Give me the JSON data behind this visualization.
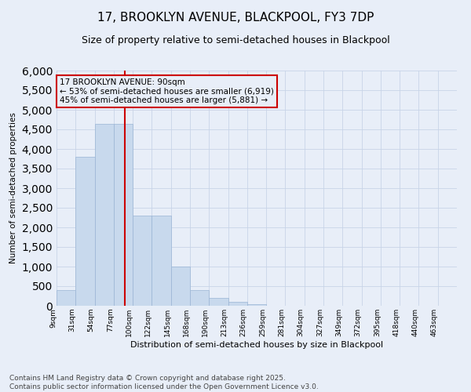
{
  "title_line1": "17, BROOKLYN AVENUE, BLACKPOOL, FY3 7DP",
  "title_line2": "Size of property relative to semi-detached houses in Blackpool",
  "xlabel": "Distribution of semi-detached houses by size in Blackpool",
  "ylabel": "Number of semi-detached properties",
  "bin_labels": [
    "9sqm",
    "31sqm",
    "54sqm",
    "77sqm",
    "100sqm",
    "122sqm",
    "145sqm",
    "168sqm",
    "190sqm",
    "213sqm",
    "236sqm",
    "259sqm",
    "281sqm",
    "304sqm",
    "327sqm",
    "349sqm",
    "372sqm",
    "395sqm",
    "418sqm",
    "440sqm",
    "463sqm"
  ],
  "bar_heights": [
    400,
    3800,
    4650,
    4650,
    2300,
    2300,
    1000,
    400,
    200,
    100,
    50,
    0,
    0,
    0,
    0,
    0,
    0,
    0,
    0,
    0,
    0
  ],
  "bar_color": "#c8d9ed",
  "bar_edge_color": "#9ab5d5",
  "grid_color": "#c8d4e8",
  "background_color": "#e8eef8",
  "vline_x": 3.6,
  "vline_color": "#cc0000",
  "annotation_text": "17 BROOKLYN AVENUE: 90sqm\n← 53% of semi-detached houses are smaller (6,919)\n45% of semi-detached houses are larger (5,881) →",
  "annotation_box_color": "#cc0000",
  "ylim": [
    0,
    6000
  ],
  "yticks": [
    0,
    500,
    1000,
    1500,
    2000,
    2500,
    3000,
    3500,
    4000,
    4500,
    5000,
    5500,
    6000
  ],
  "footnote": "Contains HM Land Registry data © Crown copyright and database right 2025.\nContains public sector information licensed under the Open Government Licence v3.0.",
  "title_fontsize": 11,
  "subtitle_fontsize": 9,
  "annotation_fontsize": 7.5,
  "footnote_fontsize": 6.5
}
